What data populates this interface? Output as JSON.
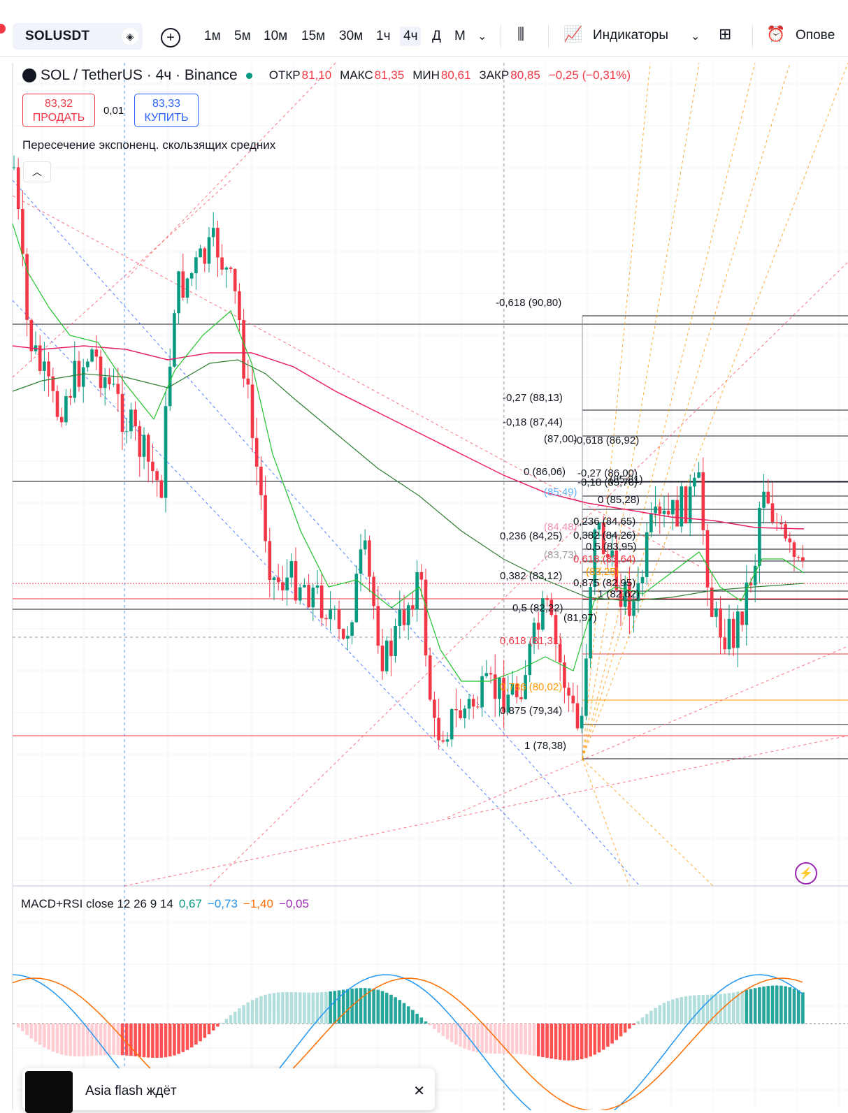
{
  "toolbar": {
    "symbol": "SOLUSDT",
    "timeframes": [
      "1м",
      "5м",
      "10м",
      "15м",
      "30м",
      "1ч",
      "4ч",
      "Д",
      "М"
    ],
    "active_timeframe": "4ч",
    "indicators_label": "Индикаторы",
    "alerts_label": "Оповe"
  },
  "legend": {
    "title": "SOL / TetherUS · 4ч · Binance",
    "open_label": "ОТКР",
    "open": "81,10",
    "high_label": "МАКС",
    "high": "81,35",
    "low_label": "МИН",
    "low": "80,61",
    "close_label": "ЗАКР",
    "close": "80,85",
    "change": "−0,25 (−0,31%)"
  },
  "trade": {
    "sell_price": "83,32",
    "sell_label": "ПРОДАТЬ",
    "spread": "0,01",
    "buy_price": "83,33",
    "buy_label": "КУПИТЬ"
  },
  "indicator_name": "Пересечение экспоненц. скользящих средних",
  "fib_left": [
    {
      "label": "-0,618 (90,80)"
    },
    {
      "label": "-0,27 (88,13)"
    },
    {
      "label": "-0,18 (87,44)"
    },
    {
      "label": "(87,00)"
    },
    {
      "label": "0 (86,06)"
    },
    {
      "label": "(85,49)"
    },
    {
      "label": "(84,48)"
    },
    {
      "label": "0,236 (84,25)"
    },
    {
      "label": "(83,73)"
    },
    {
      "label": "0,382 (83,12)"
    },
    {
      "label": "0,5 (82,22)"
    },
    {
      "label": "0,618 (81,31)"
    },
    {
      "label": "0,786 (80,02)"
    },
    {
      "label": "0,875 (79,34)"
    },
    {
      "label": "1 (78,38)"
    }
  ],
  "fib_right": [
    {
      "label": "-0,618 (86,92)"
    },
    {
      "label": "-0,27 (86,00)"
    },
    {
      "label": "-0,18 (85,76)"
    },
    {
      "label": "(85,81)"
    },
    {
      "label": "0 (85,28)"
    },
    {
      "label": "0,236 (84,65)"
    },
    {
      "label": "0,382 (84,26)"
    },
    {
      "label": "0,5 (83,95)"
    },
    {
      "label": "0,618 (83,64)"
    },
    {
      "label": "(83,25)"
    },
    {
      "label": "0,875 (82,95)"
    },
    {
      "label": "1 (82,62)"
    },
    {
      "label": "(81,97)"
    }
  ],
  "macd": {
    "name": "MACD+RSI close 12 26 9 14",
    "v1": "0,67",
    "v2": "−0,73",
    "v3": "−1,40",
    "v4": "−0,05"
  },
  "colors": {
    "up": "#089981",
    "down": "#f23645",
    "ema_fast": "#22c32d",
    "ema_mid": "#2e7d32",
    "ema_slow": "#e91e63",
    "macd": "#2196f3",
    "signal": "#ff6d00"
  },
  "toast": {
    "title": "Asia flash ждёт"
  }
}
